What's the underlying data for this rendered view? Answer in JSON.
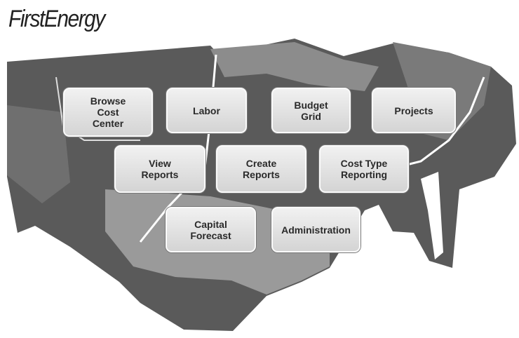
{
  "logo": "FirstEnergy",
  "buttons": [
    {
      "label": "Browse Cost Center"
    },
    {
      "label": "Labor"
    },
    {
      "label": "Budget Grid"
    },
    {
      "label": "Projects"
    },
    {
      "label": "View Reports"
    },
    {
      "label": "Create Reports"
    },
    {
      "label": "Cost Type Reporting"
    },
    {
      "label": "Capital Forecast"
    },
    {
      "label": "Administration"
    }
  ]
}
